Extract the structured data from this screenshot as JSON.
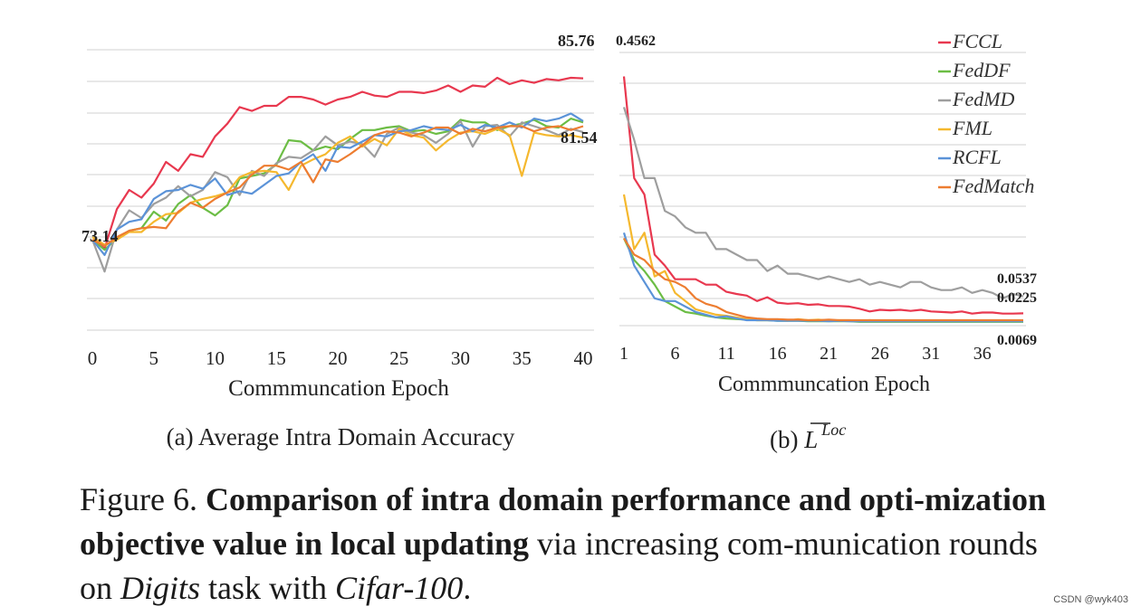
{
  "chart_data": [
    {
      "type": "line",
      "caption": "(a) Average Intra Domain Accuracy",
      "xlabel": "Commmuncation Epoch",
      "ylabel": "",
      "xlim": [
        0,
        40
      ],
      "ylim": [
        66,
        88
      ],
      "x_ticks": [
        "0",
        "5",
        "10",
        "15",
        "20",
        "25",
        "30",
        "35",
        "40"
      ],
      "grid": true,
      "annotations": {
        "start": "73.14",
        "top": "85.76",
        "low_end": "81.54"
      },
      "series": [
        {
          "name": "FCCL",
          "color": "#e8384f",
          "values": [
            73.1,
            72.4,
            75.5,
            77.0,
            76.4,
            77.5,
            79.2,
            78.5,
            79.8,
            79.6,
            81.2,
            82.2,
            83.5,
            83.2,
            83.6,
            83.6,
            84.3,
            84.3,
            84.1,
            83.7,
            84.1,
            84.3,
            84.7,
            84.4,
            84.3,
            84.7,
            84.7,
            84.6,
            84.8,
            85.2,
            84.7,
            85.2,
            85.1,
            85.8,
            85.3,
            85.6,
            85.4,
            85.7,
            85.6,
            85.8,
            85.76
          ]
        },
        {
          "name": "FedDF",
          "color": "#6cbd45",
          "values": [
            73.1,
            72.3,
            73.2,
            73.8,
            74.0,
            75.3,
            74.6,
            75.9,
            76.6,
            75.6,
            75.0,
            75.8,
            77.9,
            78.1,
            78.3,
            79.0,
            80.9,
            80.8,
            80.1,
            80.4,
            80.2,
            81.0,
            81.7,
            81.7,
            81.9,
            82.0,
            81.6,
            81.7,
            81.4,
            81.6,
            82.5,
            82.3,
            82.3,
            81.7,
            82.0,
            82.2,
            82.5,
            82.0,
            81.9,
            82.6,
            82.3
          ]
        },
        {
          "name": "FedMD",
          "color": "#9e9e9e",
          "values": [
            73.1,
            70.6,
            73.9,
            75.4,
            74.8,
            75.9,
            76.4,
            77.3,
            76.5,
            77.0,
            78.4,
            78.0,
            76.6,
            78.5,
            78.1,
            79.1,
            79.6,
            79.5,
            80.1,
            81.2,
            80.5,
            80.8,
            80.6,
            79.6,
            81.4,
            81.9,
            81.5,
            81.3,
            80.7,
            81.4,
            82.4,
            80.4,
            82.0,
            82.1,
            81.2,
            82.3,
            82.0,
            81.7,
            81.3,
            81.8,
            81.54
          ]
        },
        {
          "name": "FML",
          "color": "#f5b82e",
          "values": [
            73.3,
            72.7,
            73.1,
            73.7,
            73.7,
            74.5,
            75.1,
            75.2,
            76.0,
            76.3,
            76.5,
            76.8,
            78.0,
            78.4,
            78.5,
            78.4,
            77.0,
            78.9,
            79.4,
            79.8,
            80.7,
            81.2,
            80.4,
            81.0,
            80.5,
            81.8,
            81.3,
            81.1,
            80.1,
            80.9,
            81.5,
            81.6,
            81.4,
            81.8,
            81.3,
            78.1,
            81.5,
            81.3,
            81.2,
            81.3,
            81.1
          ]
        },
        {
          "name": "RCFL",
          "color": "#5b93d8",
          "values": [
            73.1,
            71.9,
            73.9,
            74.5,
            74.7,
            76.3,
            76.9,
            77.0,
            77.4,
            77.1,
            77.9,
            76.6,
            76.9,
            76.7,
            77.4,
            78.1,
            78.3,
            79.2,
            79.8,
            78.5,
            80.4,
            80.3,
            80.8,
            81.3,
            81.2,
            81.6,
            81.7,
            82.0,
            81.8,
            81.7,
            82.1,
            81.6,
            82.1,
            81.9,
            82.3,
            81.9,
            82.6,
            82.4,
            82.6,
            83.0,
            82.4
          ]
        },
        {
          "name": "FedMatch",
          "color": "#ed7d31",
          "values": [
            73.1,
            72.6,
            73.3,
            73.8,
            74.0,
            74.1,
            74.0,
            75.3,
            76.0,
            75.6,
            76.3,
            76.8,
            77.2,
            78.2,
            78.9,
            78.9,
            78.6,
            79.2,
            77.6,
            79.4,
            79.2,
            79.8,
            80.5,
            81.3,
            81.6,
            81.5,
            81.2,
            81.5,
            81.9,
            81.9,
            81.4,
            81.8,
            81.6,
            81.9,
            82.0,
            82.0,
            81.6,
            81.9,
            82.0,
            81.7,
            82.0
          ]
        }
      ]
    },
    {
      "type": "line",
      "caption_prefix": "(b)",
      "caption_symbol": "L",
      "caption_superscript": "Loc",
      "xlabel": "Commmuncation Epoch",
      "ylabel": "",
      "xlim": [
        1,
        40
      ],
      "ylim": [
        0,
        0.5
      ],
      "x_ticks": [
        "1",
        "6",
        "11",
        "16",
        "21",
        "26",
        "31",
        "36"
      ],
      "x_tick_values": [
        1,
        6,
        11,
        16,
        21,
        26,
        31,
        36
      ],
      "grid": true,
      "legend": "top-right",
      "annotations": {
        "start": "0.4562",
        "end_high": "0.0537",
        "end_mid": "0.0225",
        "end_low": "0.0069"
      },
      "series": [
        {
          "name": "FCCL",
          "color": "#e8384f",
          "values": [
            0.4562,
            0.27,
            0.24,
            0.13,
            0.11,
            0.085,
            0.085,
            0.085,
            0.075,
            0.075,
            0.062,
            0.058,
            0.055,
            0.045,
            0.052,
            0.042,
            0.04,
            0.041,
            0.038,
            0.039,
            0.036,
            0.036,
            0.035,
            0.031,
            0.026,
            0.029,
            0.028,
            0.029,
            0.027,
            0.029,
            0.026,
            0.025,
            0.024,
            0.026,
            0.022,
            0.024,
            0.024,
            0.022,
            0.022,
            0.0225
          ]
        },
        {
          "name": "FedDF",
          "color": "#6cbd45",
          "values": [
            0.16,
            0.12,
            0.1,
            0.075,
            0.045,
            0.035,
            0.025,
            0.022,
            0.018,
            0.015,
            0.013,
            0.012,
            0.011,
            0.01,
            0.01,
            0.009,
            0.009,
            0.009,
            0.008,
            0.008,
            0.008,
            0.008,
            0.008,
            0.007,
            0.007,
            0.007,
            0.007,
            0.007,
            0.007,
            0.007,
            0.007,
            0.007,
            0.007,
            0.007,
            0.007,
            0.007,
            0.007,
            0.007,
            0.007,
            0.0069
          ]
        },
        {
          "name": "FedMD",
          "color": "#9e9e9e",
          "values": [
            0.4,
            0.34,
            0.27,
            0.27,
            0.21,
            0.2,
            0.18,
            0.17,
            0.17,
            0.14,
            0.14,
            0.13,
            0.12,
            0.12,
            0.1,
            0.11,
            0.095,
            0.095,
            0.09,
            0.085,
            0.09,
            0.085,
            0.08,
            0.085,
            0.075,
            0.08,
            0.075,
            0.07,
            0.08,
            0.08,
            0.07,
            0.065,
            0.065,
            0.07,
            0.06,
            0.065,
            0.06,
            0.05,
            0.058,
            0.0537
          ]
        },
        {
          "name": "FML",
          "color": "#f5b82e",
          "values": [
            0.24,
            0.14,
            0.17,
            0.09,
            0.1,
            0.06,
            0.045,
            0.03,
            0.025,
            0.02,
            0.018,
            0.015,
            0.012,
            0.01,
            0.01,
            0.01,
            0.009,
            0.012,
            0.01,
            0.011,
            0.009,
            0.01,
            0.01,
            0.009,
            0.01,
            0.009,
            0.009,
            0.009,
            0.009,
            0.009,
            0.009,
            0.009,
            0.009,
            0.009,
            0.009,
            0.009,
            0.009,
            0.009,
            0.009,
            0.009
          ]
        },
        {
          "name": "RCFL",
          "color": "#5b93d8",
          "values": [
            0.17,
            0.11,
            0.08,
            0.05,
            0.045,
            0.045,
            0.035,
            0.025,
            0.02,
            0.015,
            0.017,
            0.013,
            0.01,
            0.01,
            0.01,
            0.009,
            0.009,
            0.009,
            0.009,
            0.009,
            0.008,
            0.009,
            0.008,
            0.008,
            0.008,
            0.008,
            0.008,
            0.008,
            0.008,
            0.008,
            0.008,
            0.008,
            0.008,
            0.008,
            0.008,
            0.008,
            0.008,
            0.008,
            0.008,
            0.008
          ]
        },
        {
          "name": "FedMatch",
          "color": "#ed7d31",
          "values": [
            0.16,
            0.13,
            0.12,
            0.1,
            0.085,
            0.08,
            0.07,
            0.05,
            0.04,
            0.035,
            0.025,
            0.02,
            0.015,
            0.013,
            0.012,
            0.012,
            0.011,
            0.011,
            0.01,
            0.01,
            0.011,
            0.01,
            0.01,
            0.01,
            0.01,
            0.01,
            0.01,
            0.01,
            0.01,
            0.01,
            0.01,
            0.01,
            0.01,
            0.01,
            0.01,
            0.01,
            0.01,
            0.01,
            0.01,
            0.01
          ]
        }
      ]
    }
  ],
  "caption": {
    "label": "Figure 6.",
    "bold": "Comparison of intra domain performance and opti-mization objective value in local updating",
    "mid": "via increasing com-munication rounds on",
    "italic1": "Digits",
    "mid2": "task with",
    "italic2": "Cifar-100",
    "end": "."
  },
  "watermark": "CSDN @wyk403"
}
